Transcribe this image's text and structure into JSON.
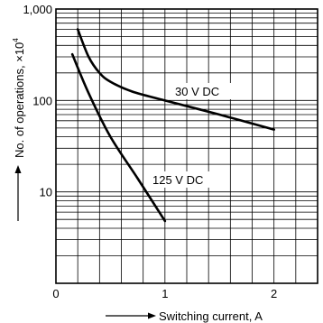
{
  "chart_data": {
    "type": "line",
    "title": "",
    "xlabel": "Switching current, A",
    "ylabel": "No. of operations, ×10",
    "ylabel_sup": "4",
    "xlim": [
      0,
      2.4
    ],
    "ylim": [
      1,
      1000
    ],
    "yscale": "log",
    "grid": true,
    "x_ticks": [
      {
        "value": 0,
        "label": "0"
      },
      {
        "value": 1,
        "label": "1"
      },
      {
        "value": 2,
        "label": "2"
      }
    ],
    "y_ticks": [
      {
        "value": 10,
        "label": "10"
      },
      {
        "value": 100,
        "label": "100"
      },
      {
        "value": 1000,
        "label": "1,000"
      }
    ],
    "series": [
      {
        "name": "30 V DC",
        "x": [
          0.2,
          0.3,
          0.4,
          0.5,
          0.7,
          1.0,
          1.5,
          2.0
        ],
        "y": [
          600,
          300,
          200,
          160,
          125,
          100,
          70,
          48
        ]
      },
      {
        "name": "125 V DC",
        "x": [
          0.15,
          0.3,
          0.5,
          0.75,
          1.0
        ],
        "y": [
          320,
          120,
          40,
          14,
          4.8
        ]
      }
    ],
    "colors": {
      "line": "#000000",
      "grid": "#000000",
      "background": "#ffffff"
    }
  }
}
